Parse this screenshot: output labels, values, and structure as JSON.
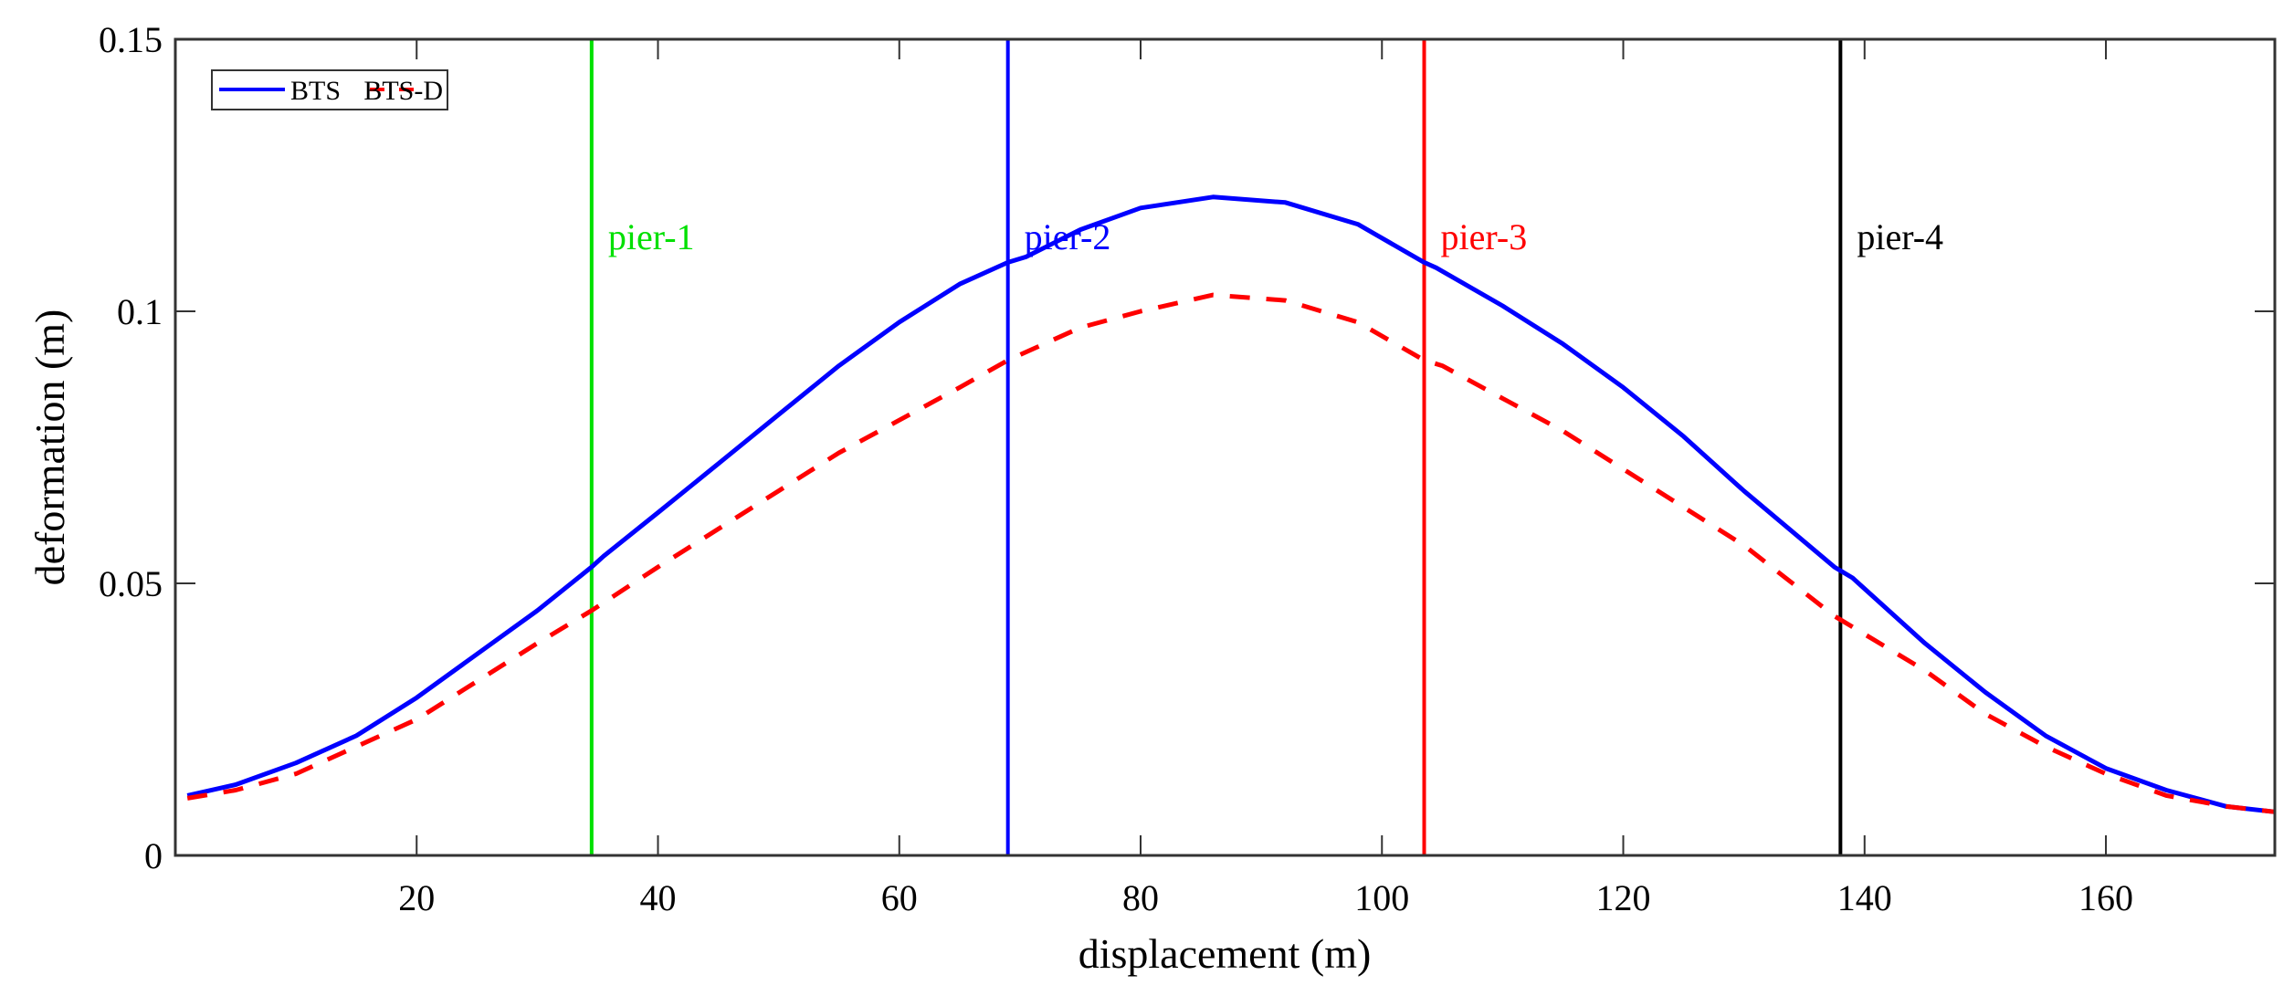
{
  "chart_data": {
    "type": "line",
    "title": "",
    "xlabel": "displacement (m)",
    "ylabel": "deformation (m)",
    "xlim": [
      0,
      174
    ],
    "ylim": [
      0,
      0.15
    ],
    "xticks": [
      20,
      40,
      60,
      80,
      100,
      120,
      140,
      160
    ],
    "yticks": [
      0,
      0.05,
      0.1,
      0.15
    ],
    "ytick_labels": [
      "0",
      "0.05",
      "0.1",
      "0.15"
    ],
    "grid": false,
    "legend": {
      "placement": "top-left",
      "entries": [
        "BTS",
        "BTS-D"
      ]
    },
    "series": [
      {
        "name": "BTS",
        "color": "#0000ff",
        "style": "solid",
        "x": [
          1,
          5,
          10,
          15,
          20,
          25,
          30,
          34.5,
          35.5,
          40,
          45,
          50,
          55,
          60,
          65,
          69,
          70.5,
          75,
          80,
          86,
          92,
          98,
          103.5,
          104.5,
          110,
          115,
          120,
          125,
          130,
          137.5,
          139,
          145,
          150,
          155,
          160,
          165,
          170,
          174
        ],
        "y": [
          0.011,
          0.013,
          0.017,
          0.022,
          0.029,
          0.037,
          0.045,
          0.053,
          0.055,
          0.063,
          0.072,
          0.081,
          0.09,
          0.098,
          0.105,
          0.109,
          0.11,
          0.115,
          0.119,
          0.121,
          0.12,
          0.116,
          0.109,
          0.108,
          0.101,
          0.094,
          0.086,
          0.077,
          0.067,
          0.053,
          0.051,
          0.039,
          0.03,
          0.022,
          0.016,
          0.012,
          0.009,
          0.008
        ]
      },
      {
        "name": "BTS-D",
        "color": "#ff0000",
        "style": "dashed",
        "x": [
          1,
          5,
          10,
          15,
          20,
          25,
          30,
          34.5,
          40,
          45,
          50,
          55,
          60,
          65,
          69,
          75,
          80,
          86,
          92,
          98,
          103.5,
          105,
          110,
          115,
          120,
          125,
          130,
          137.5,
          145,
          150,
          155,
          160,
          165,
          170,
          174
        ],
        "y": [
          0.0105,
          0.012,
          0.015,
          0.02,
          0.025,
          0.032,
          0.039,
          0.045,
          0.053,
          0.06,
          0.067,
          0.074,
          0.08,
          0.086,
          0.091,
          0.097,
          0.1,
          0.103,
          0.102,
          0.098,
          0.091,
          0.09,
          0.084,
          0.078,
          0.071,
          0.064,
          0.057,
          0.044,
          0.034,
          0.026,
          0.02,
          0.015,
          0.011,
          0.009,
          0.008
        ]
      }
    ],
    "annotations": [
      {
        "label": "pier-1",
        "x": 34.5,
        "color": "#00e000"
      },
      {
        "label": "pier-2",
        "x": 69,
        "color": "#0000ff"
      },
      {
        "label": "pier-3",
        "x": 103.5,
        "color": "#ff0000"
      },
      {
        "label": "pier-4",
        "x": 138,
        "color": "#000000"
      }
    ]
  }
}
